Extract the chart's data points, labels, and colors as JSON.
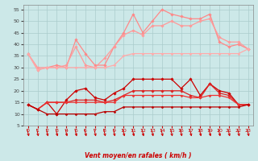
{
  "xlabel": "Vent moyen/en rafales ( km/h )",
  "xlim": [
    -0.5,
    23.5
  ],
  "ylim": [
    5,
    57
  ],
  "yticks": [
    5,
    10,
    15,
    20,
    25,
    30,
    35,
    40,
    45,
    50,
    55
  ],
  "xticks": [
    0,
    1,
    2,
    3,
    4,
    5,
    6,
    7,
    8,
    9,
    10,
    11,
    12,
    13,
    14,
    15,
    16,
    17,
    18,
    19,
    20,
    21,
    22,
    23
  ],
  "bg_color": "#cce8e8",
  "grid_color": "#aacccc",
  "series": [
    {
      "name": "rafales_1",
      "color": "#ff8888",
      "lw": 0.9,
      "marker": "D",
      "ms": 1.8,
      "data_x": [
        0,
        1,
        2,
        3,
        4,
        5,
        6,
        7,
        8,
        9,
        10,
        11,
        12,
        13,
        14,
        15,
        16,
        17,
        18,
        19,
        20,
        21,
        22,
        23
      ],
      "data_y": [
        36,
        29,
        30,
        31,
        30,
        42,
        36,
        31,
        31,
        39,
        45,
        53,
        45,
        50,
        55,
        53,
        52,
        51,
        51,
        53,
        41,
        39,
        40,
        38
      ]
    },
    {
      "name": "rafales_2",
      "color": "#ff9999",
      "lw": 0.9,
      "marker": "D",
      "ms": 1.8,
      "data_x": [
        0,
        1,
        2,
        3,
        4,
        5,
        6,
        7,
        8,
        9,
        10,
        11,
        12,
        13,
        14,
        15,
        16,
        17,
        18,
        19,
        20,
        21,
        22,
        23
      ],
      "data_y": [
        36,
        30,
        30,
        30,
        31,
        39,
        31,
        30,
        34,
        39,
        44,
        46,
        44,
        48,
        48,
        50,
        48,
        48,
        50,
        51,
        43,
        41,
        41,
        38
      ]
    },
    {
      "name": "rafales_flat",
      "color": "#ffaaaa",
      "lw": 0.9,
      "marker": "D",
      "ms": 1.5,
      "data_x": [
        0,
        1,
        2,
        3,
        4,
        5,
        6,
        7,
        8,
        9,
        10,
        11,
        12,
        13,
        14,
        15,
        16,
        17,
        18,
        19,
        20,
        21,
        22,
        23
      ],
      "data_y": [
        36,
        29,
        30,
        30,
        30,
        30,
        30,
        30,
        30,
        31,
        35,
        36,
        36,
        36,
        36,
        36,
        36,
        36,
        36,
        36,
        36,
        36,
        36,
        38
      ]
    },
    {
      "name": "vent_high",
      "color": "#cc0000",
      "lw": 0.9,
      "marker": "D",
      "ms": 1.8,
      "data_x": [
        0,
        1,
        2,
        3,
        4,
        5,
        6,
        7,
        8,
        9,
        10,
        11,
        12,
        13,
        14,
        15,
        16,
        17,
        18,
        19,
        20,
        21,
        22,
        23
      ],
      "data_y": [
        14,
        12,
        15,
        10,
        16,
        20,
        21,
        17,
        16,
        19,
        21,
        25,
        25,
        25,
        25,
        25,
        21,
        25,
        18,
        23,
        20,
        19,
        14,
        14
      ]
    },
    {
      "name": "vent_mid",
      "color": "#dd2222",
      "lw": 0.9,
      "marker": "D",
      "ms": 1.8,
      "data_x": [
        0,
        1,
        2,
        3,
        4,
        5,
        6,
        7,
        8,
        9,
        10,
        11,
        12,
        13,
        14,
        15,
        16,
        17,
        18,
        19,
        20,
        21,
        22,
        23
      ],
      "data_y": [
        14,
        12,
        15,
        15,
        15,
        16,
        16,
        16,
        15,
        16,
        18,
        20,
        20,
        20,
        20,
        20,
        20,
        18,
        17,
        23,
        19,
        18,
        14,
        14
      ]
    },
    {
      "name": "vent_flat_high",
      "color": "#ee3333",
      "lw": 0.9,
      "marker": "D",
      "ms": 1.5,
      "data_x": [
        0,
        1,
        2,
        3,
        4,
        5,
        6,
        7,
        8,
        9,
        10,
        11,
        12,
        13,
        14,
        15,
        16,
        17,
        18,
        19,
        20,
        21,
        22,
        23
      ],
      "data_y": [
        14,
        12,
        15,
        15,
        15,
        15,
        15,
        15,
        15,
        15,
        18,
        18,
        18,
        18,
        18,
        18,
        18,
        17,
        17,
        18,
        18,
        17,
        14,
        14
      ]
    },
    {
      "name": "vent_flat_low",
      "color": "#bb0000",
      "lw": 0.9,
      "marker": "D",
      "ms": 1.5,
      "data_x": [
        0,
        1,
        2,
        3,
        4,
        5,
        6,
        7,
        8,
        9,
        10,
        11,
        12,
        13,
        14,
        15,
        16,
        17,
        18,
        19,
        20,
        21,
        22,
        23
      ],
      "data_y": [
        14,
        12,
        10,
        10,
        10,
        10,
        10,
        10,
        11,
        11,
        13,
        13,
        13,
        13,
        13,
        13,
        13,
        13,
        13,
        13,
        13,
        13,
        13,
        14
      ]
    }
  ]
}
